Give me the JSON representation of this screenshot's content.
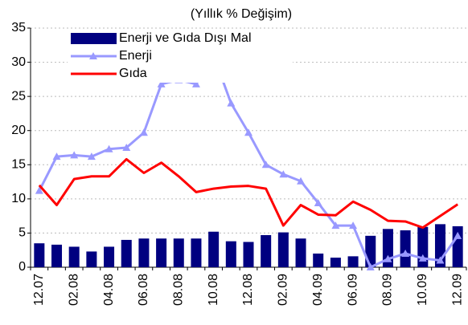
{
  "chart_data": {
    "type": "bar_line",
    "title": "(Yıllık % Değişim)",
    "categories": [
      "12.07",
      null,
      "02.08",
      null,
      "04.08",
      null,
      "06.08",
      null,
      "08.08",
      null,
      "10.08",
      null,
      "12.08",
      null,
      "02.09",
      null,
      "04.09",
      null,
      "06.09",
      null,
      "08.09",
      null,
      "10.09",
      null,
      "12.09"
    ],
    "series": [
      {
        "name": "Enerji ve Gıda Dışı Mal",
        "type": "bar",
        "color": "#000080",
        "values": [
          3.5,
          3.3,
          3.0,
          2.3,
          3.0,
          4.0,
          4.2,
          4.2,
          4.2,
          4.2,
          5.2,
          3.8,
          3.7,
          4.7,
          5.1,
          4.2,
          2.0,
          1.4,
          1.6,
          4.6,
          5.6,
          5.4,
          5.9,
          6.3,
          6.0
        ]
      },
      {
        "name": "Enerji",
        "type": "line",
        "marker": "triangle",
        "color": "#9999ff",
        "values": [
          11.2,
          16.2,
          16.4,
          16.2,
          17.3,
          17.5,
          19.7,
          26.8,
          27.4,
          26.8,
          31.0,
          24.0,
          19.7,
          15.0,
          13.6,
          12.6,
          9.4,
          6.1,
          6.1,
          0,
          1.2,
          2.0,
          1.3,
          1.0,
          4.6
        ]
      },
      {
        "name": "Gıda",
        "type": "line",
        "color": "#ff0000",
        "values": [
          12.0,
          9.1,
          12.9,
          13.3,
          13.3,
          15.8,
          13.8,
          15.3,
          13.3,
          11.0,
          11.5,
          11.8,
          11.9,
          11.5,
          6.1,
          9.1,
          7.7,
          7.6,
          9.6,
          8.4,
          6.8,
          6.7,
          5.8,
          7.5,
          9.2
        ]
      }
    ],
    "ylim": [
      0,
      35
    ],
    "yticks": [
      0,
      5,
      10,
      15,
      20,
      25,
      30,
      35
    ],
    "grid": true,
    "legend": "upper-left"
  }
}
